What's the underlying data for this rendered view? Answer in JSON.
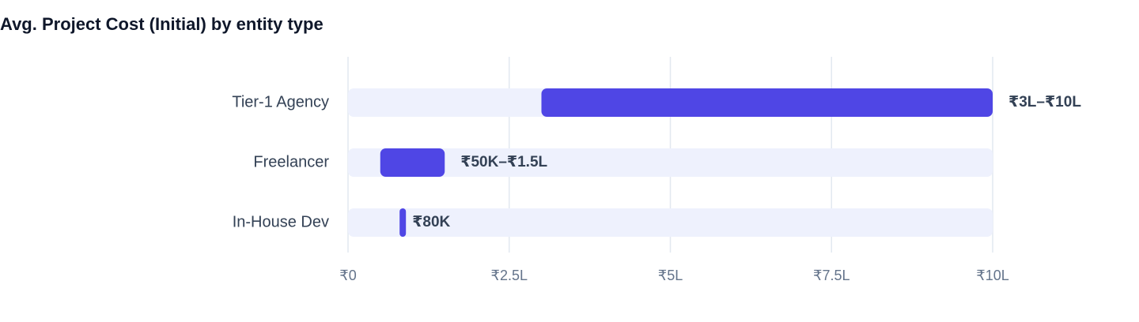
{
  "chart_data": {
    "type": "range-bar",
    "title": "Avg. Project Cost (Initial) by entity type",
    "categories": [
      "Tier-1 Agency",
      "Freelancer",
      "In-House Dev"
    ],
    "low": [
      300000,
      50000,
      80000
    ],
    "high": [
      1000000,
      150000,
      80000
    ],
    "value_labels": [
      "₹3L–₹10L",
      "₹50K–₹1.5L",
      "₹80K"
    ],
    "color": "#4f46e5",
    "track_color": "#eef1fd",
    "xlim": [
      0,
      1000000
    ],
    "xticks": [
      {
        "value": 0,
        "label": "₹0"
      },
      {
        "value": 250000,
        "label": "₹2.5L"
      },
      {
        "value": 500000,
        "label": "₹5L"
      },
      {
        "value": 750000,
        "label": "₹7.5L"
      },
      {
        "value": 1000000,
        "label": "₹10L"
      }
    ],
    "grid": true
  }
}
